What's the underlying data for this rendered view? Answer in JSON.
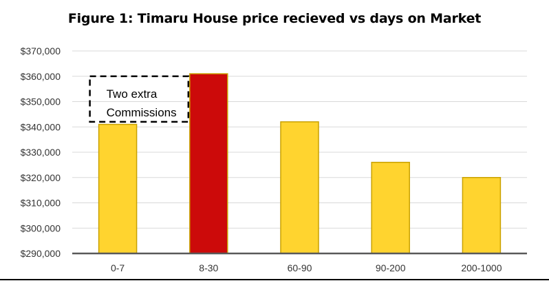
{
  "chart_data": {
    "type": "bar",
    "title": "Figure 1: Timaru House price recieved vs days on Market",
    "xlabel": "",
    "ylabel": "",
    "categories": [
      "0-7",
      "8-30",
      "60-90",
      "90-200",
      "200-1000"
    ],
    "values": [
      341000,
      361000,
      342000,
      326000,
      320000
    ],
    "ylim": [
      290000,
      370000
    ],
    "yticks": [
      290000,
      300000,
      310000,
      320000,
      330000,
      340000,
      350000,
      360000,
      370000
    ],
    "ytick_labels": [
      "$290,000",
      "$300,000",
      "$310,000",
      "$320,000",
      "$330,000",
      "$340,000",
      "$350,000",
      "$360,000",
      "$370,000"
    ],
    "grid": true,
    "legend": "none",
    "bar_colors": [
      "#FFD42F",
      "#CC0A0A",
      "#FFD42F",
      "#FFD42F",
      "#FFD42F"
    ],
    "bar_edge_color": "#C9A100",
    "annotation": {
      "lines": [
        "Two extra",
        "Commissions"
      ],
      "style": "dashed box",
      "range_x": [
        "0-7",
        "8-30"
      ],
      "range_y": [
        342000,
        360000
      ]
    }
  }
}
